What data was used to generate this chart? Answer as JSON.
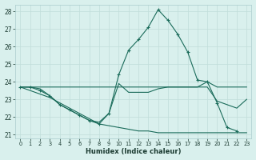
{
  "xlabel": "Humidex (Indice chaleur)",
  "xlim": [
    -0.5,
    23.5
  ],
  "ylim": [
    20.8,
    28.4
  ],
  "yticks": [
    21,
    22,
    23,
    24,
    25,
    26,
    27,
    28
  ],
  "xticks": [
    0,
    1,
    2,
    3,
    4,
    5,
    6,
    7,
    8,
    9,
    10,
    11,
    12,
    13,
    14,
    15,
    16,
    17,
    18,
    19,
    20,
    21,
    22,
    23
  ],
  "bg_color": "#d9f0ed",
  "grid_color": "#c0ddd9",
  "line_color": "#1a6b5a",
  "series": [
    {
      "x": [
        0,
        1,
        2,
        3,
        4,
        5,
        6,
        7,
        8,
        9,
        10,
        11,
        12,
        13,
        14,
        15,
        16,
        17,
        18,
        19,
        20,
        21,
        22,
        23
      ],
      "y": [
        23.7,
        23.7,
        23.7,
        23.7,
        23.7,
        23.7,
        23.7,
        23.7,
        23.7,
        23.7,
        23.7,
        23.7,
        23.7,
        23.7,
        23.7,
        23.7,
        23.7,
        23.7,
        23.7,
        24.0,
        23.7,
        23.7,
        23.7,
        23.7
      ],
      "marker": false
    },
    {
      "x": [
        0,
        1,
        2,
        3,
        4,
        5,
        6,
        7,
        8,
        9,
        10,
        11,
        12,
        13,
        14,
        15,
        16,
        17,
        18,
        19,
        20,
        21,
        22,
        23
      ],
      "y": [
        23.7,
        23.7,
        23.6,
        23.2,
        22.7,
        22.4,
        22.1,
        21.8,
        21.7,
        22.2,
        23.9,
        23.4,
        23.4,
        23.4,
        23.6,
        23.7,
        23.7,
        23.7,
        23.7,
        23.7,
        22.9,
        22.7,
        22.5,
        23.0
      ],
      "marker": false
    },
    {
      "x": [
        0,
        1,
        2,
        3,
        4,
        5,
        6,
        7,
        8,
        9,
        10,
        11,
        12,
        13,
        14,
        15,
        16,
        17,
        18,
        19,
        20,
        21,
        22,
        23
      ],
      "y": [
        23.7,
        23.5,
        23.3,
        23.1,
        22.8,
        22.5,
        22.2,
        21.9,
        21.6,
        21.5,
        21.4,
        21.3,
        21.2,
        21.2,
        21.1,
        21.1,
        21.1,
        21.1,
        21.1,
        21.1,
        21.1,
        21.1,
        21.1,
        21.1
      ],
      "marker": false
    },
    {
      "x": [
        0,
        1,
        2,
        3,
        4,
        5,
        6,
        7,
        8,
        9,
        10,
        11,
        12,
        13,
        14,
        15,
        16,
        17,
        18,
        19,
        20,
        21,
        22
      ],
      "y": [
        23.7,
        23.7,
        23.5,
        23.2,
        22.7,
        22.4,
        22.1,
        21.8,
        21.6,
        22.2,
        24.4,
        25.8,
        26.4,
        27.1,
        28.1,
        27.5,
        26.7,
        25.7,
        24.1,
        24.0,
        22.8,
        21.4,
        21.2
      ],
      "marker": true
    }
  ]
}
